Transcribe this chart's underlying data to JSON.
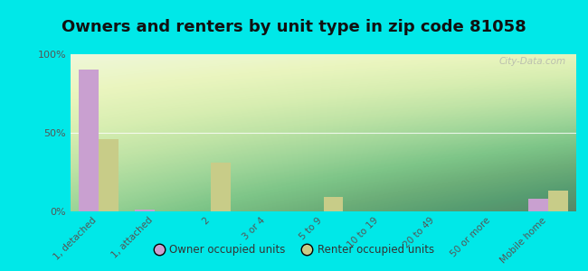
{
  "title": "Owners and renters by unit type in zip code 81058",
  "categories": [
    "1, detached",
    "1, attached",
    "2",
    "3 or 4",
    "5 to 9",
    "10 to 19",
    "20 to 49",
    "50 or more",
    "Mobile home"
  ],
  "owner_values": [
    90,
    1,
    0,
    0,
    0,
    0,
    0,
    0,
    8
  ],
  "renter_values": [
    46,
    0,
    31,
    0,
    9,
    0,
    0,
    0,
    13
  ],
  "owner_color": "#c9a0d0",
  "renter_color": "#c8cc88",
  "background_color": "#00e8e8",
  "ylim": [
    0,
    100
  ],
  "yticks": [
    0,
    50,
    100
  ],
  "ytick_labels": [
    "0%",
    "50%",
    "100%"
  ],
  "legend_owner": "Owner occupied units",
  "legend_renter": "Renter occupied units",
  "bar_width": 0.35,
  "title_fontsize": 13,
  "watermark": "City-Data.com"
}
